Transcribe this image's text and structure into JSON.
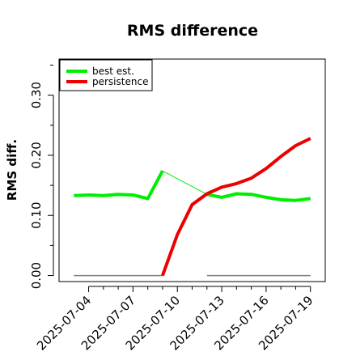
{
  "chart_data": {
    "type": "line",
    "title": "RMS difference",
    "xlabel": "",
    "ylabel": "RMS diff.",
    "x_tick_labels": [
      "2025-07-04",
      "2025-07-07",
      "2025-07-10",
      "2025-07-13",
      "2025-07-16",
      "2025-07-19"
    ],
    "x_ticks": [
      "2025-07-04",
      "2025-07-07",
      "2025-07-10",
      "2025-07-13",
      "2025-07-16",
      "2025-07-19"
    ],
    "y_tick_labels": [
      "0.00",
      "0.10",
      "0.20",
      "0.30"
    ],
    "y_ticks": [
      0.0,
      0.1,
      0.2,
      0.3
    ],
    "xlim": [
      "2025-07-02",
      "2025-07-20"
    ],
    "ylim": [
      -0.01,
      0.36
    ],
    "grid": false,
    "legend_position": "top-left",
    "series": [
      {
        "name": "best est.",
        "color": "#00ee00",
        "segments": [
          {
            "x": [
              "2025-07-03",
              "2025-07-04",
              "2025-07-05",
              "2025-07-06",
              "2025-07-07",
              "2025-07-08",
              "2025-07-09"
            ],
            "y": [
              0.133,
              0.134,
              0.133,
              0.135,
              0.134,
              0.128,
              0.174
            ]
          },
          {
            "x": [
              "2025-07-12",
              "2025-07-13",
              "2025-07-14",
              "2025-07-15",
              "2025-07-16",
              "2025-07-17",
              "2025-07-18",
              "2025-07-19"
            ],
            "y": [
              0.135,
              0.13,
              0.136,
              0.135,
              0.13,
              0.126,
              0.125,
              0.128
            ]
          }
        ],
        "connector": {
          "x": [
            "2025-07-09",
            "2025-07-12"
          ],
          "y": [
            0.174,
            0.135
          ]
        }
      },
      {
        "name": "persistence",
        "color": "#ee0000",
        "segments": [
          {
            "x": [
              "2025-07-09",
              "2025-07-10",
              "2025-07-11",
              "2025-07-12",
              "2025-07-13",
              "2025-07-14",
              "2025-07-15",
              "2025-07-16",
              "2025-07-17",
              "2025-07-18",
              "2025-07-19"
            ],
            "y": [
              0.0,
              0.068,
              0.118,
              0.136,
              0.147,
              0.153,
              0.162,
              0.178,
              0.198,
              0.216,
              0.228
            ]
          }
        ]
      }
    ],
    "baselines": [
      {
        "x": [
          "2025-07-03",
          "2025-07-09"
        ],
        "y": [
          0.0,
          0.0
        ],
        "color": "#808080"
      },
      {
        "x": [
          "2025-07-12",
          "2025-07-19"
        ],
        "y": [
          0.0,
          0.0
        ],
        "color": "#808080"
      }
    ]
  }
}
